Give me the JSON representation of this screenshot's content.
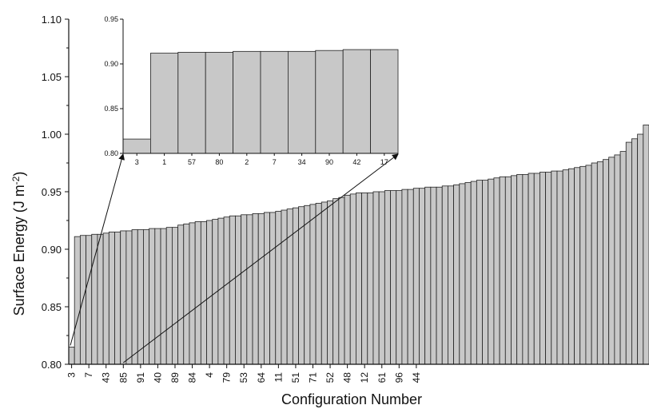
{
  "chart_data": [
    {
      "type": "bar",
      "role": "main",
      "xlabel": "Configuration Number",
      "ylabel": "Surface Energy (J m",
      "ylabel_sup": "-2",
      "ylabel_close": ")",
      "ylim": [
        0.8,
        1.1
      ],
      "yticks": [
        "0.80",
        "0.85",
        "0.90",
        "0.95",
        "1.00",
        "1.05",
        "1.10"
      ],
      "xtick_labels": [
        "3",
        "7",
        "43",
        "85",
        "91",
        "40",
        "89",
        "84",
        "4",
        "79",
        "53",
        "64",
        "11",
        "51",
        "71",
        "52",
        "48",
        "12",
        "61",
        "96",
        "44"
      ],
      "xtick_every": 3,
      "values": [
        0.815,
        0.911,
        0.912,
        0.912,
        0.913,
        0.913,
        0.914,
        0.915,
        0.915,
        0.916,
        0.916,
        0.917,
        0.917,
        0.917,
        0.918,
        0.918,
        0.918,
        0.919,
        0.919,
        0.921,
        0.922,
        0.923,
        0.924,
        0.924,
        0.925,
        0.926,
        0.927,
        0.928,
        0.929,
        0.929,
        0.93,
        0.93,
        0.931,
        0.931,
        0.932,
        0.932,
        0.933,
        0.934,
        0.935,
        0.936,
        0.937,
        0.938,
        0.939,
        0.94,
        0.941,
        0.942,
        0.944,
        0.945,
        0.947,
        0.948,
        0.949,
        0.949,
        0.949,
        0.95,
        0.95,
        0.951,
        0.951,
        0.951,
        0.952,
        0.952,
        0.953,
        0.953,
        0.954,
        0.954,
        0.954,
        0.955,
        0.955,
        0.956,
        0.957,
        0.958,
        0.959,
        0.96,
        0.96,
        0.961,
        0.962,
        0.963,
        0.963,
        0.964,
        0.965,
        0.965,
        0.966,
        0.966,
        0.967,
        0.967,
        0.968,
        0.968,
        0.969,
        0.97,
        0.971,
        0.972,
        0.973,
        0.975,
        0.976,
        0.978,
        0.98,
        0.982,
        0.985,
        0.993,
        0.996,
        1.0,
        1.008
      ],
      "bar_color": "#c8c8c8",
      "edge_color": "#222222"
    },
    {
      "type": "bar",
      "role": "inset",
      "categories": [
        "3",
        "1",
        "57",
        "80",
        "2",
        "7",
        "34",
        "90",
        "42",
        "17"
      ],
      "values": [
        0.816,
        0.912,
        0.913,
        0.913,
        0.914,
        0.914,
        0.914,
        0.915,
        0.916,
        0.916
      ],
      "ylim": [
        0.8,
        0.95
      ],
      "yticks": [
        "0.80",
        "0.85",
        "0.90",
        "0.95"
      ],
      "bar_color": "#c8c8c8",
      "edge_color": "#222222"
    }
  ]
}
